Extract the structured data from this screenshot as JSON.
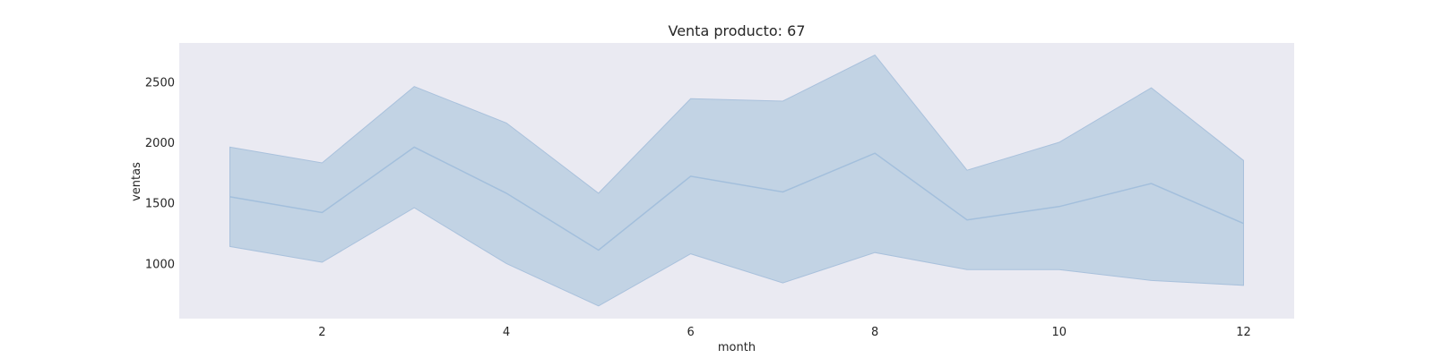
{
  "chart_data": {
    "type": "line",
    "title": "Venta producto: 67",
    "xlabel": "month",
    "ylabel": "ventas",
    "x": [
      1,
      2,
      3,
      4,
      5,
      6,
      7,
      8,
      9,
      10,
      11,
      12
    ],
    "x_ticks": [
      2,
      4,
      6,
      8,
      10,
      12
    ],
    "y_ticks": [
      1000,
      1500,
      2000,
      2500
    ],
    "xlim": [
      0.45,
      12.55
    ],
    "ylim": [
      545,
      2820
    ],
    "grid": false,
    "series": [
      {
        "values": [
          1550,
          1420,
          1960,
          1580,
          1110,
          1720,
          1590,
          1910,
          1360,
          1470,
          1660,
          1330
        ],
        "band_upper": [
          1960,
          1830,
          2460,
          2160,
          1580,
          2360,
          2340,
          2720,
          1770,
          2000,
          2450,
          1850
        ],
        "band_lower": [
          1140,
          1010,
          1460,
          1000,
          650,
          1080,
          840,
          1090,
          950,
          950,
          860,
          820
        ],
        "color": "#4c72b0"
      }
    ],
    "colors": {
      "plot_background": "#eaeaf2",
      "line": "#a3bfdc",
      "band": "#c2d3e4",
      "band_edge": "#a9c1dc"
    }
  }
}
